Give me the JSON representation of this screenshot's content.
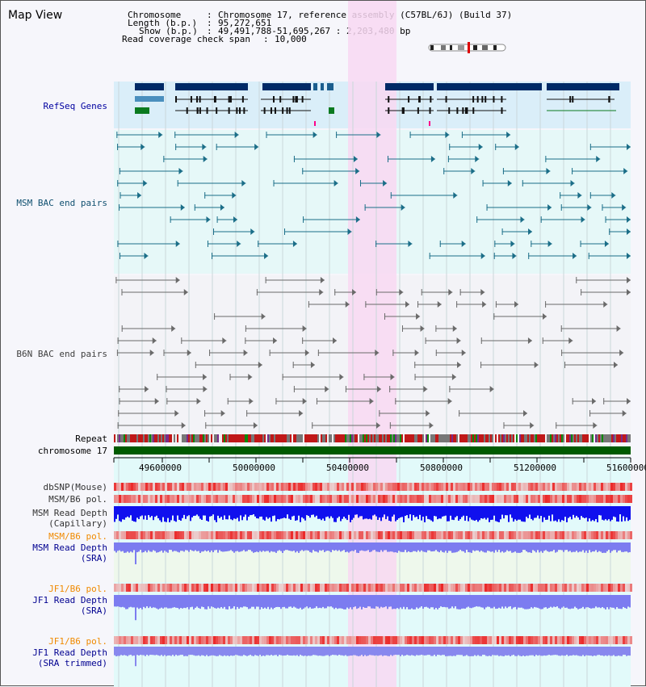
{
  "title": "Map View",
  "header": {
    "chromosome_label": "Chromosome",
    "chromosome_value": "Chromosome 17, reference assembly (C57BL/6J) (Build 37)",
    "length_label": "Length (b.p.)",
    "length_value": "95,272,651",
    "show_label": "Show (b.p.)",
    "show_value": "49,491,788-51,695,267 : 2,203,480 bp",
    "coverage_label": "Read coverage check span",
    "coverage_value": "10,000"
  },
  "tracks": {
    "refseq": "RefSeq Genes",
    "msm_bac": "MSM BAC end pairs",
    "b6n_bac": "B6N BAC end pairs",
    "repeat": "Repeat",
    "chromosome": "chromosome 17",
    "dbsnp": "dbSNP(Mouse)",
    "msm_b6_pol": "MSM/B6 pol.",
    "msm_depth_cap_1": "MSM Read Depth",
    "msm_depth_cap_2": "(Capillary)",
    "msm_b6_pol_sra": "MSM/B6 pol.",
    "msm_depth_sra_1": "MSM Read Depth",
    "msm_depth_sra_2": "(SRA)",
    "jf1_pol": "JF1/B6 pol.",
    "jf1_depth_1": "JF1 Read Depth",
    "jf1_depth_2": "(SRA)",
    "jf1_pol_2": "JF1/B6 pol.",
    "jf1_trim_1": "JF1 Read Depth",
    "jf1_trim_2": "(SRA trimmed)"
  },
  "axis": {
    "ticks": [
      "49600000",
      "50000000",
      "50400000",
      "50800000",
      "51200000",
      "51600000"
    ]
  },
  "colors": {
    "refseq_bg": "#daeef9",
    "refseq_dark": "#002a66",
    "msm_bac": "#1b6e88",
    "b6n_bac": "#6a6a6a",
    "highlight": "#f8d8f2",
    "chromosome": "#005a00",
    "depth_dark": "#1010ee",
    "depth_light": "#7c7cf0",
    "pol_label": "#f08a00",
    "depth_label": "#000090"
  }
}
